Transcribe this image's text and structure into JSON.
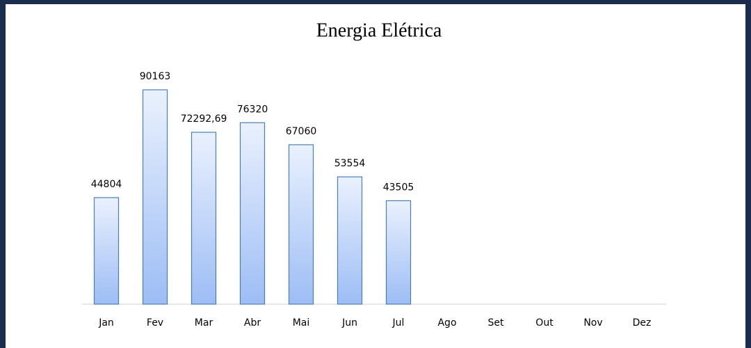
{
  "chart_data": {
    "type": "bar",
    "title": "Energia Elétrica",
    "categories": [
      "Jan",
      "Fev",
      "Mar",
      "Abr",
      "Mai",
      "Jun",
      "Jul",
      "Ago",
      "Set",
      "Out",
      "Nov",
      "Dez"
    ],
    "values": [
      44804,
      90163,
      72292.69,
      76320,
      67060,
      53554,
      43505,
      null,
      null,
      null,
      null,
      null
    ],
    "value_labels": [
      "44804",
      "90163",
      "72292,69",
      "76320",
      "67060",
      "53554",
      "43505",
      null,
      null,
      null,
      null,
      null
    ],
    "color": "#9dbdf5"
  }
}
